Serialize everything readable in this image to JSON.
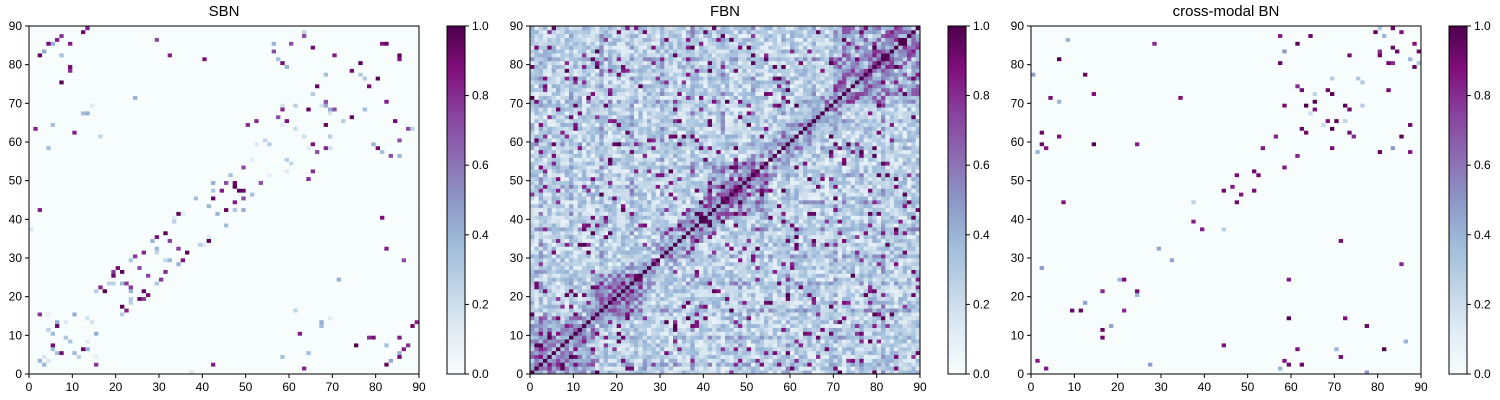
{
  "chart_data": [
    {
      "type": "heatmap",
      "title": "SBN",
      "x_range": [
        0,
        90
      ],
      "y_range": [
        0,
        90
      ],
      "grid_size": 90,
      "x_ticks": [
        0,
        10,
        20,
        30,
        40,
        50,
        60,
        70,
        80,
        90
      ],
      "y_ticks": [
        0,
        10,
        20,
        30,
        40,
        50,
        60,
        70,
        80,
        90
      ],
      "colorbar": {
        "range": [
          0,
          1
        ],
        "ticks": [
          "0.0",
          "0.2",
          "0.4",
          "0.6",
          "0.8",
          "1.0"
        ]
      },
      "pattern": "sparse connectivity matrix, symmetric; nonzero cells concentrated near the main diagonal and in bands near the corners (near x=5..15,y=0..15 and x=60..90,y=55..90)"
    },
    {
      "type": "heatmap",
      "title": "FBN",
      "x_range": [
        0,
        90
      ],
      "y_range": [
        0,
        90
      ],
      "grid_size": 90,
      "x_ticks": [
        0,
        10,
        20,
        30,
        40,
        50,
        60,
        70,
        80,
        90
      ],
      "y_ticks": [
        0,
        10,
        20,
        30,
        40,
        50,
        60,
        70,
        80,
        90
      ],
      "colorbar": {
        "range": [
          0,
          1
        ],
        "ticks": [
          "0.0",
          "0.2",
          "0.4",
          "0.6",
          "0.8",
          "1.0"
        ]
      },
      "pattern": "dense connectivity matrix, symmetric; main diagonal = 1.0; strong blocks near 40-55 and 70-90; values mostly 0.1-0.6 elsewhere"
    },
    {
      "type": "heatmap",
      "title": "cross-modal BN",
      "x_range": [
        0,
        90
      ],
      "y_range": [
        0,
        90
      ],
      "grid_size": 90,
      "x_ticks": [
        0,
        10,
        20,
        30,
        40,
        50,
        60,
        70,
        80,
        90
      ],
      "y_ticks": [
        0,
        10,
        20,
        30,
        40,
        50,
        60,
        70,
        80,
        90
      ],
      "colorbar": {
        "range": [
          0,
          1
        ],
        "ticks": [
          "0.0",
          "0.2",
          "0.4",
          "0.6",
          "0.8",
          "1.0"
        ]
      },
      "pattern": "very sparse symmetric matrix; isolated strong cells near the SBN nonzero locations, mostly near the diagonal"
    }
  ],
  "colors": {
    "colormap_stops": [
      "#f7fcfd",
      "#e0ecf4",
      "#bfd3e6",
      "#9ebcda",
      "#8c96c6",
      "#8c6bb1",
      "#88419d",
      "#810f7c",
      "#4d004b"
    ],
    "axis": "#000000",
    "background": "#ffffff"
  }
}
